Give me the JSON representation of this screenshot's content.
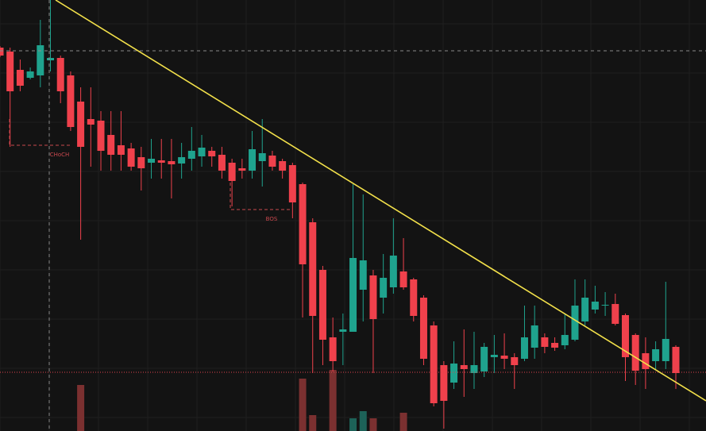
{
  "chart_data": {
    "type": "candlestick",
    "ylim": [
      0,
      543
    ],
    "up_color": "#1fa38e",
    "down_color": "#f0414c",
    "volume_up_color": "#1d6258",
    "volume_down_color": "#7b3030",
    "open": [
      483,
      478,
      455,
      445,
      448,
      467,
      470,
      448,
      415,
      393,
      391,
      373,
      360,
      356,
      345,
      338,
      341,
      340,
      337,
      343,
      346,
      353,
      348,
      338,
      331,
      328,
      340,
      347,
      340,
      335,
      311,
      263,
      203,
      118,
      125,
      125,
      178,
      196,
      168,
      181,
      201,
      191,
      168,
      133,
      83,
      61,
      83,
      73,
      75,
      93,
      95,
      93,
      91,
      105,
      118,
      111,
      108,
      115,
      138,
      153,
      158,
      160,
      146,
      121,
      98,
      88,
      88,
      106
    ],
    "high": [
      485,
      483,
      468,
      458,
      518,
      543,
      473,
      453,
      433,
      433,
      403,
      403,
      403,
      363,
      358,
      368,
      368,
      368,
      363,
      383,
      373,
      358,
      358,
      343,
      343,
      378,
      393,
      353,
      343,
      338,
      313,
      268,
      208,
      143,
      148,
      311,
      298,
      203,
      223,
      268,
      243,
      193,
      171,
      138,
      88,
      113,
      128,
      125,
      111,
      121,
      123,
      98,
      158,
      158,
      123,
      118,
      148,
      191,
      191,
      183,
      175,
      173,
      148,
      123,
      118,
      113,
      188,
      108
    ],
    "low": [
      471,
      358,
      428,
      443,
      433,
      453,
      413,
      378,
      241,
      333,
      328,
      328,
      328,
      328,
      303,
      318,
      318,
      293,
      318,
      328,
      333,
      333,
      318,
      283,
      318,
      318,
      308,
      328,
      318,
      268,
      143,
      73,
      83,
      75,
      83,
      125,
      138,
      73,
      148,
      173,
      178,
      138,
      83,
      31,
      3,
      53,
      43,
      53,
      68,
      73,
      78,
      53,
      88,
      91,
      98,
      101,
      103,
      113,
      133,
      148,
      145,
      133,
      63,
      58,
      53,
      78,
      78,
      53
    ],
    "close": [
      473,
      428,
      435,
      453,
      486,
      470,
      428,
      383,
      358,
      386,
      353,
      348,
      348,
      333,
      331,
      343,
      338,
      336,
      345,
      353,
      357,
      346,
      328,
      315,
      328,
      355,
      350,
      333,
      328,
      288,
      210,
      145,
      115,
      88,
      128,
      218,
      215,
      141,
      193,
      221,
      181,
      145,
      91,
      35,
      38,
      85,
      78,
      83,
      106,
      96,
      91,
      83,
      118,
      133,
      106,
      105,
      121,
      158,
      168,
      163,
      159,
      135,
      93,
      76,
      78,
      103,
      116,
      73
    ],
    "volume": [
      null,
      null,
      null,
      null,
      null,
      null,
      null,
      null,
      58,
      null,
      null,
      null,
      null,
      null,
      null,
      null,
      null,
      null,
      null,
      null,
      null,
      null,
      null,
      null,
      null,
      null,
      null,
      null,
      null,
      null,
      66,
      20,
      null,
      77,
      null,
      16,
      25,
      16,
      null,
      null,
      23,
      null,
      null,
      null,
      null,
      null,
      null,
      null,
      null,
      null,
      null,
      null,
      null,
      null,
      null,
      null,
      null,
      null,
      null,
      null,
      null,
      null,
      null,
      null,
      null,
      null,
      null,
      null
    ],
    "choch_label": "CHoCH",
    "bos_label": "BOS"
  }
}
